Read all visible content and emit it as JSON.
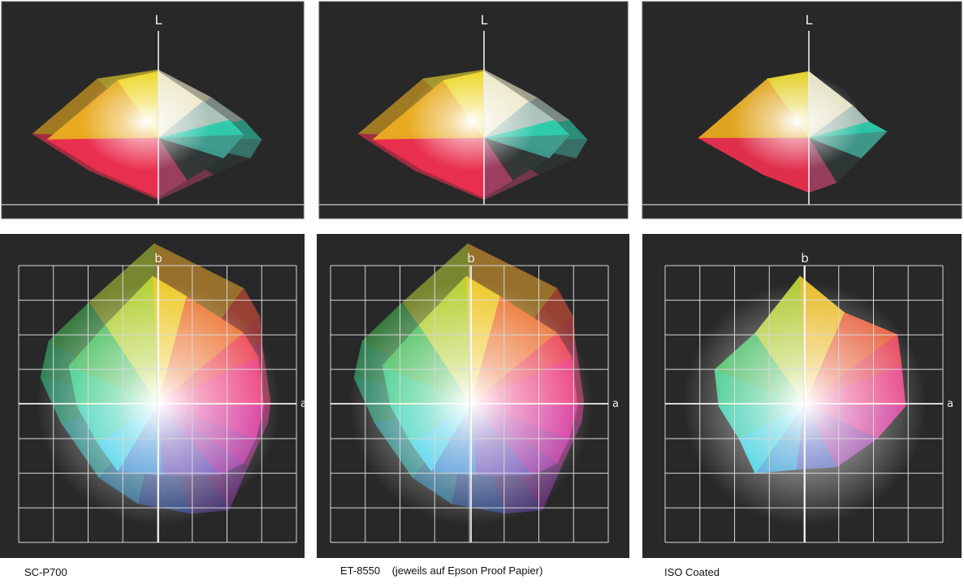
{
  "axes": {
    "l_label": "L",
    "b_label": "b",
    "a_label": "a"
  },
  "panels": [
    {
      "caption": "SC-P700"
    },
    {
      "caption": "ET-8550    (jeweils auf Epson Proof Papier)"
    },
    {
      "caption": "ISO Coated"
    }
  ],
  "colors": {
    "panel_bg": "#282828",
    "grid": "#d8d8d8"
  }
}
